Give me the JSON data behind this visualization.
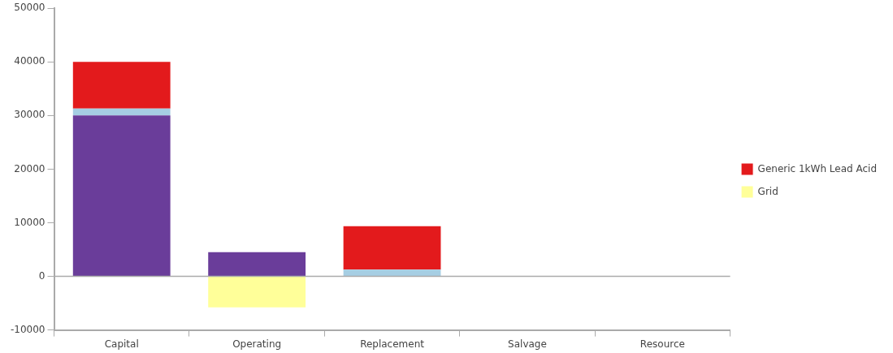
{
  "chart_data": {
    "type": "bar",
    "stacked": true,
    "categories": [
      "Capital",
      "Operating",
      "Replacement",
      "Salvage",
      "Resource"
    ],
    "series": [
      {
        "color": "#6a3d9a",
        "values": [
          30000,
          4500,
          0,
          0,
          0
        ]
      },
      {
        "color": "#a6cee3",
        "values": [
          1300,
          0,
          1250,
          0,
          0
        ]
      },
      {
        "name": "Generic 1kWh Lead Acid",
        "color": "#e31a1c",
        "values": [
          8700,
          0,
          8100,
          0,
          0
        ]
      },
      {
        "name": "Grid",
        "color": "#ffff99",
        "values": [
          0,
          -5800,
          0,
          0,
          0
        ]
      }
    ],
    "ylim": [
      -10000,
      50000
    ],
    "yticks": [
      -10000,
      0,
      10000,
      20000,
      30000,
      40000,
      50000
    ],
    "ref_lines": [
      {
        "axis": "y",
        "value": 0,
        "color": "#aaaaaa"
      }
    ],
    "grid": false,
    "legend": "right"
  }
}
